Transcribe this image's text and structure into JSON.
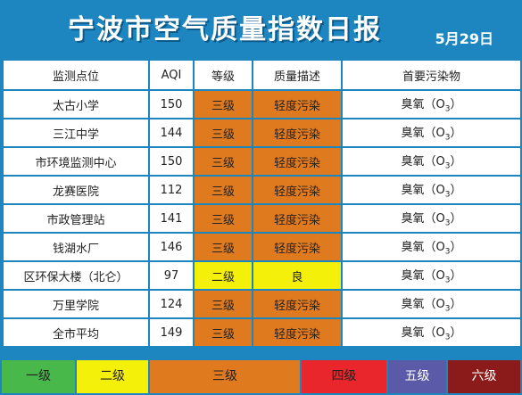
{
  "header": {
    "title": "宁波市空气质量指数日报",
    "date": "5月29日"
  },
  "table": {
    "headers": [
      "监测点位",
      "AQI",
      "等级",
      "质量描述",
      "首要污染物"
    ],
    "rows": [
      {
        "site": "太古小学",
        "aqi": "150",
        "level": "三级",
        "desc": "轻度污染",
        "pollutant": "臭氧（O",
        "sub": "3",
        "close": "）",
        "level_color": "#e07a1f",
        "desc_color": "#e07a1f"
      },
      {
        "site": "三江中学",
        "aqi": "144",
        "level": "三级",
        "desc": "轻度污染",
        "pollutant": "臭氧（O",
        "sub": "3",
        "close": "）",
        "level_color": "#e07a1f",
        "desc_color": "#e07a1f"
      },
      {
        "site": "市环境监测中心",
        "aqi": "150",
        "level": "三级",
        "desc": "轻度污染",
        "pollutant": "臭氧（O",
        "sub": "3",
        "close": "）",
        "level_color": "#e07a1f",
        "desc_color": "#e07a1f"
      },
      {
        "site": "龙赛医院",
        "aqi": "112",
        "level": "三级",
        "desc": "轻度污染",
        "pollutant": "臭氧（O",
        "sub": "3",
        "close": "）",
        "level_color": "#e07a1f",
        "desc_color": "#e07a1f"
      },
      {
        "site": "市政管理站",
        "aqi": "141",
        "level": "三级",
        "desc": "轻度污染",
        "pollutant": "臭氧（O",
        "sub": "3",
        "close": "）",
        "level_color": "#e07a1f",
        "desc_color": "#e07a1f"
      },
      {
        "site": "钱湖水厂",
        "aqi": "146",
        "level": "三级",
        "desc": "轻度污染",
        "pollutant": "臭氧（O",
        "sub": "3",
        "close": "）",
        "level_color": "#e07a1f",
        "desc_color": "#e07a1f"
      },
      {
        "site": "区环保大楼（北仑）",
        "aqi": "97",
        "level": "二级",
        "desc": "良",
        "pollutant": "臭氧（O",
        "sub": "3",
        "close": "）",
        "level_color": "#f5f00a",
        "desc_color": "#f5f00a"
      },
      {
        "site": "万里学院",
        "aqi": "124",
        "level": "三级",
        "desc": "轻度污染",
        "pollutant": "臭氧（O",
        "sub": "3",
        "close": "）",
        "level_color": "#e07a1f",
        "desc_color": "#e07a1f"
      },
      {
        "site": "全市平均",
        "aqi": "149",
        "level": "三级",
        "desc": "轻度污染",
        "pollutant": "臭氧（O",
        "sub": "3",
        "close": "）",
        "level_color": "#e07a1f",
        "desc_color": "#e07a1f"
      }
    ]
  },
  "legend": [
    {
      "label": "一级",
      "color": "#49b84a"
    },
    {
      "label": "二级",
      "color": "#f5f00a"
    },
    {
      "label": "三级",
      "color": "#e07a1f"
    },
    {
      "label": "四级",
      "color": "#e8262b"
    },
    {
      "label": "五级",
      "color": "#5a5aa8"
    },
    {
      "label": "六级",
      "color": "#8b1a1a"
    }
  ]
}
